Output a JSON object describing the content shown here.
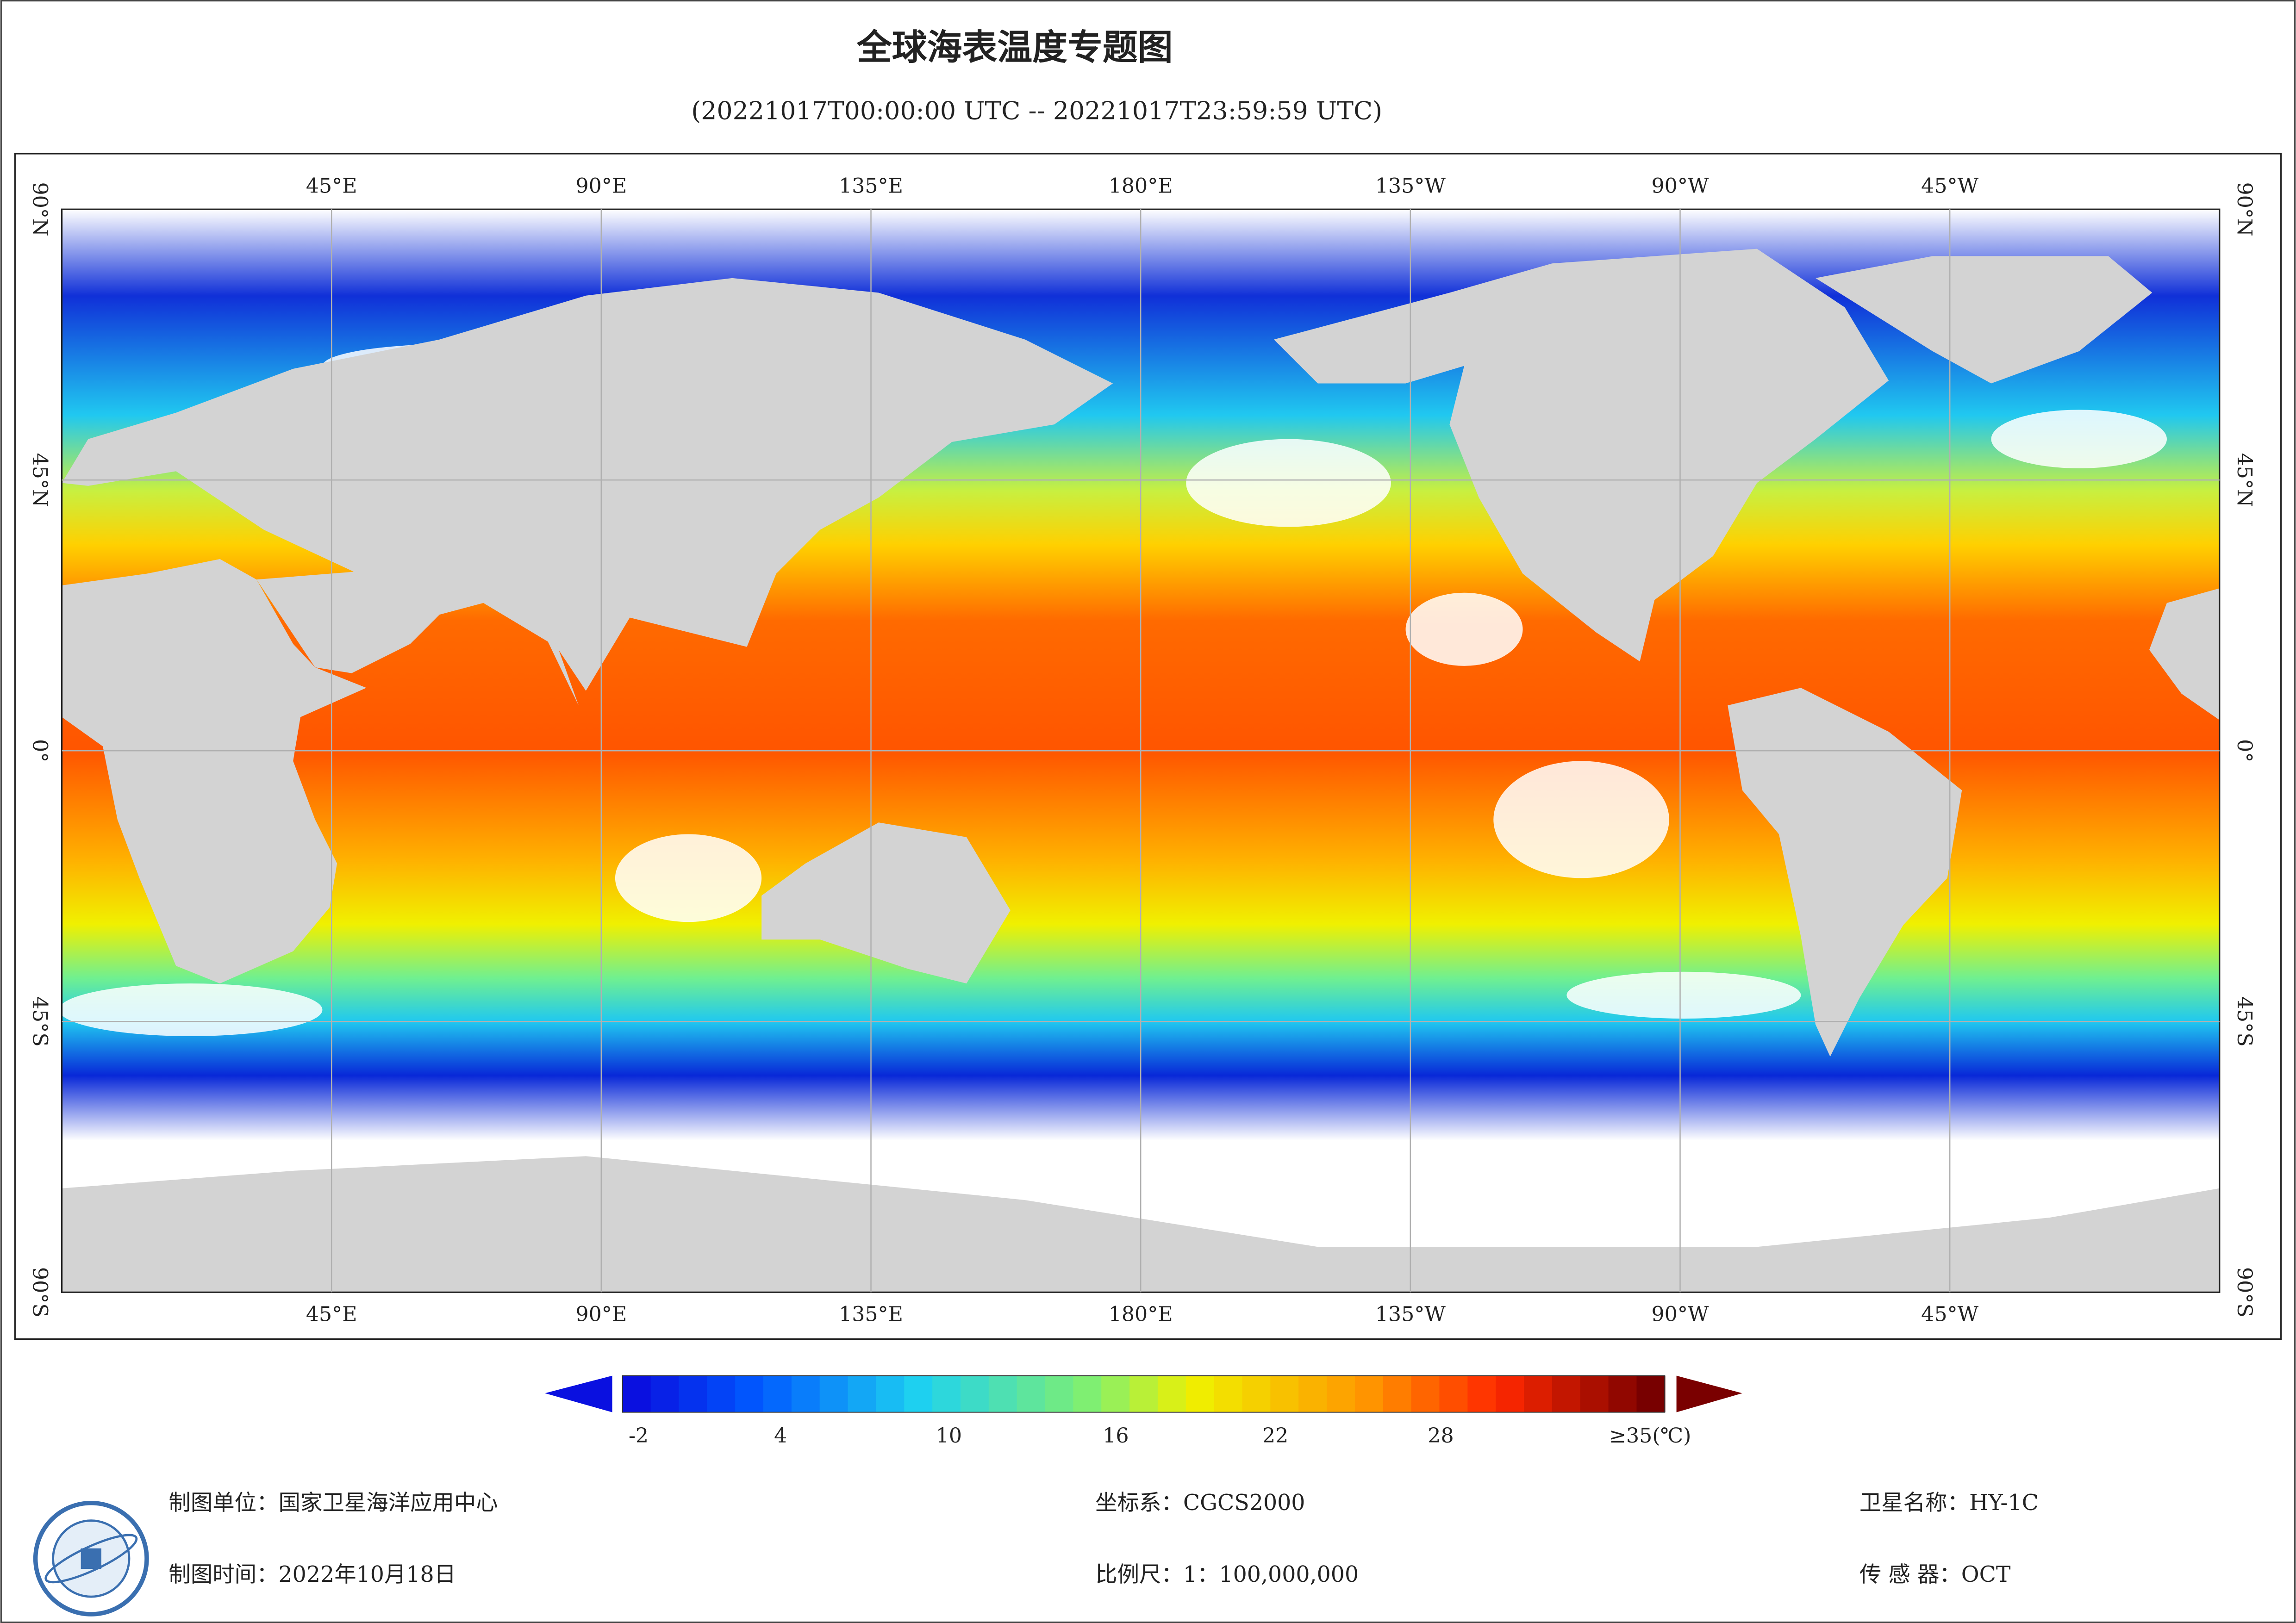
{
  "header": {
    "title": "全球海表温度专题图",
    "subtitle": "(20221017T00:00:00 UTC -- 20221017T23:59:59 UTC)"
  },
  "map": {
    "lon_labels": [
      "45°E",
      "90°E",
      "135°E",
      "180°E",
      "135°W",
      "90°W",
      "45°W"
    ],
    "lat_labels": [
      "90°N",
      "45°N",
      "0°",
      "45°S",
      "90°S"
    ]
  },
  "colorbar": {
    "ticks": [
      "-2",
      "4",
      "10",
      "16",
      "22",
      "28",
      "≥35(℃)"
    ]
  },
  "footer": {
    "unit": "制图单位：国家卫星海洋应用中心",
    "date": "制图时间：2022年10月18日",
    "crs": "坐标系：CGCS2000",
    "scale": "比例尺：1：100,000,000",
    "satellite": "卫星名称：HY-1C",
    "sensor": "传 感 器：OCT"
  }
}
